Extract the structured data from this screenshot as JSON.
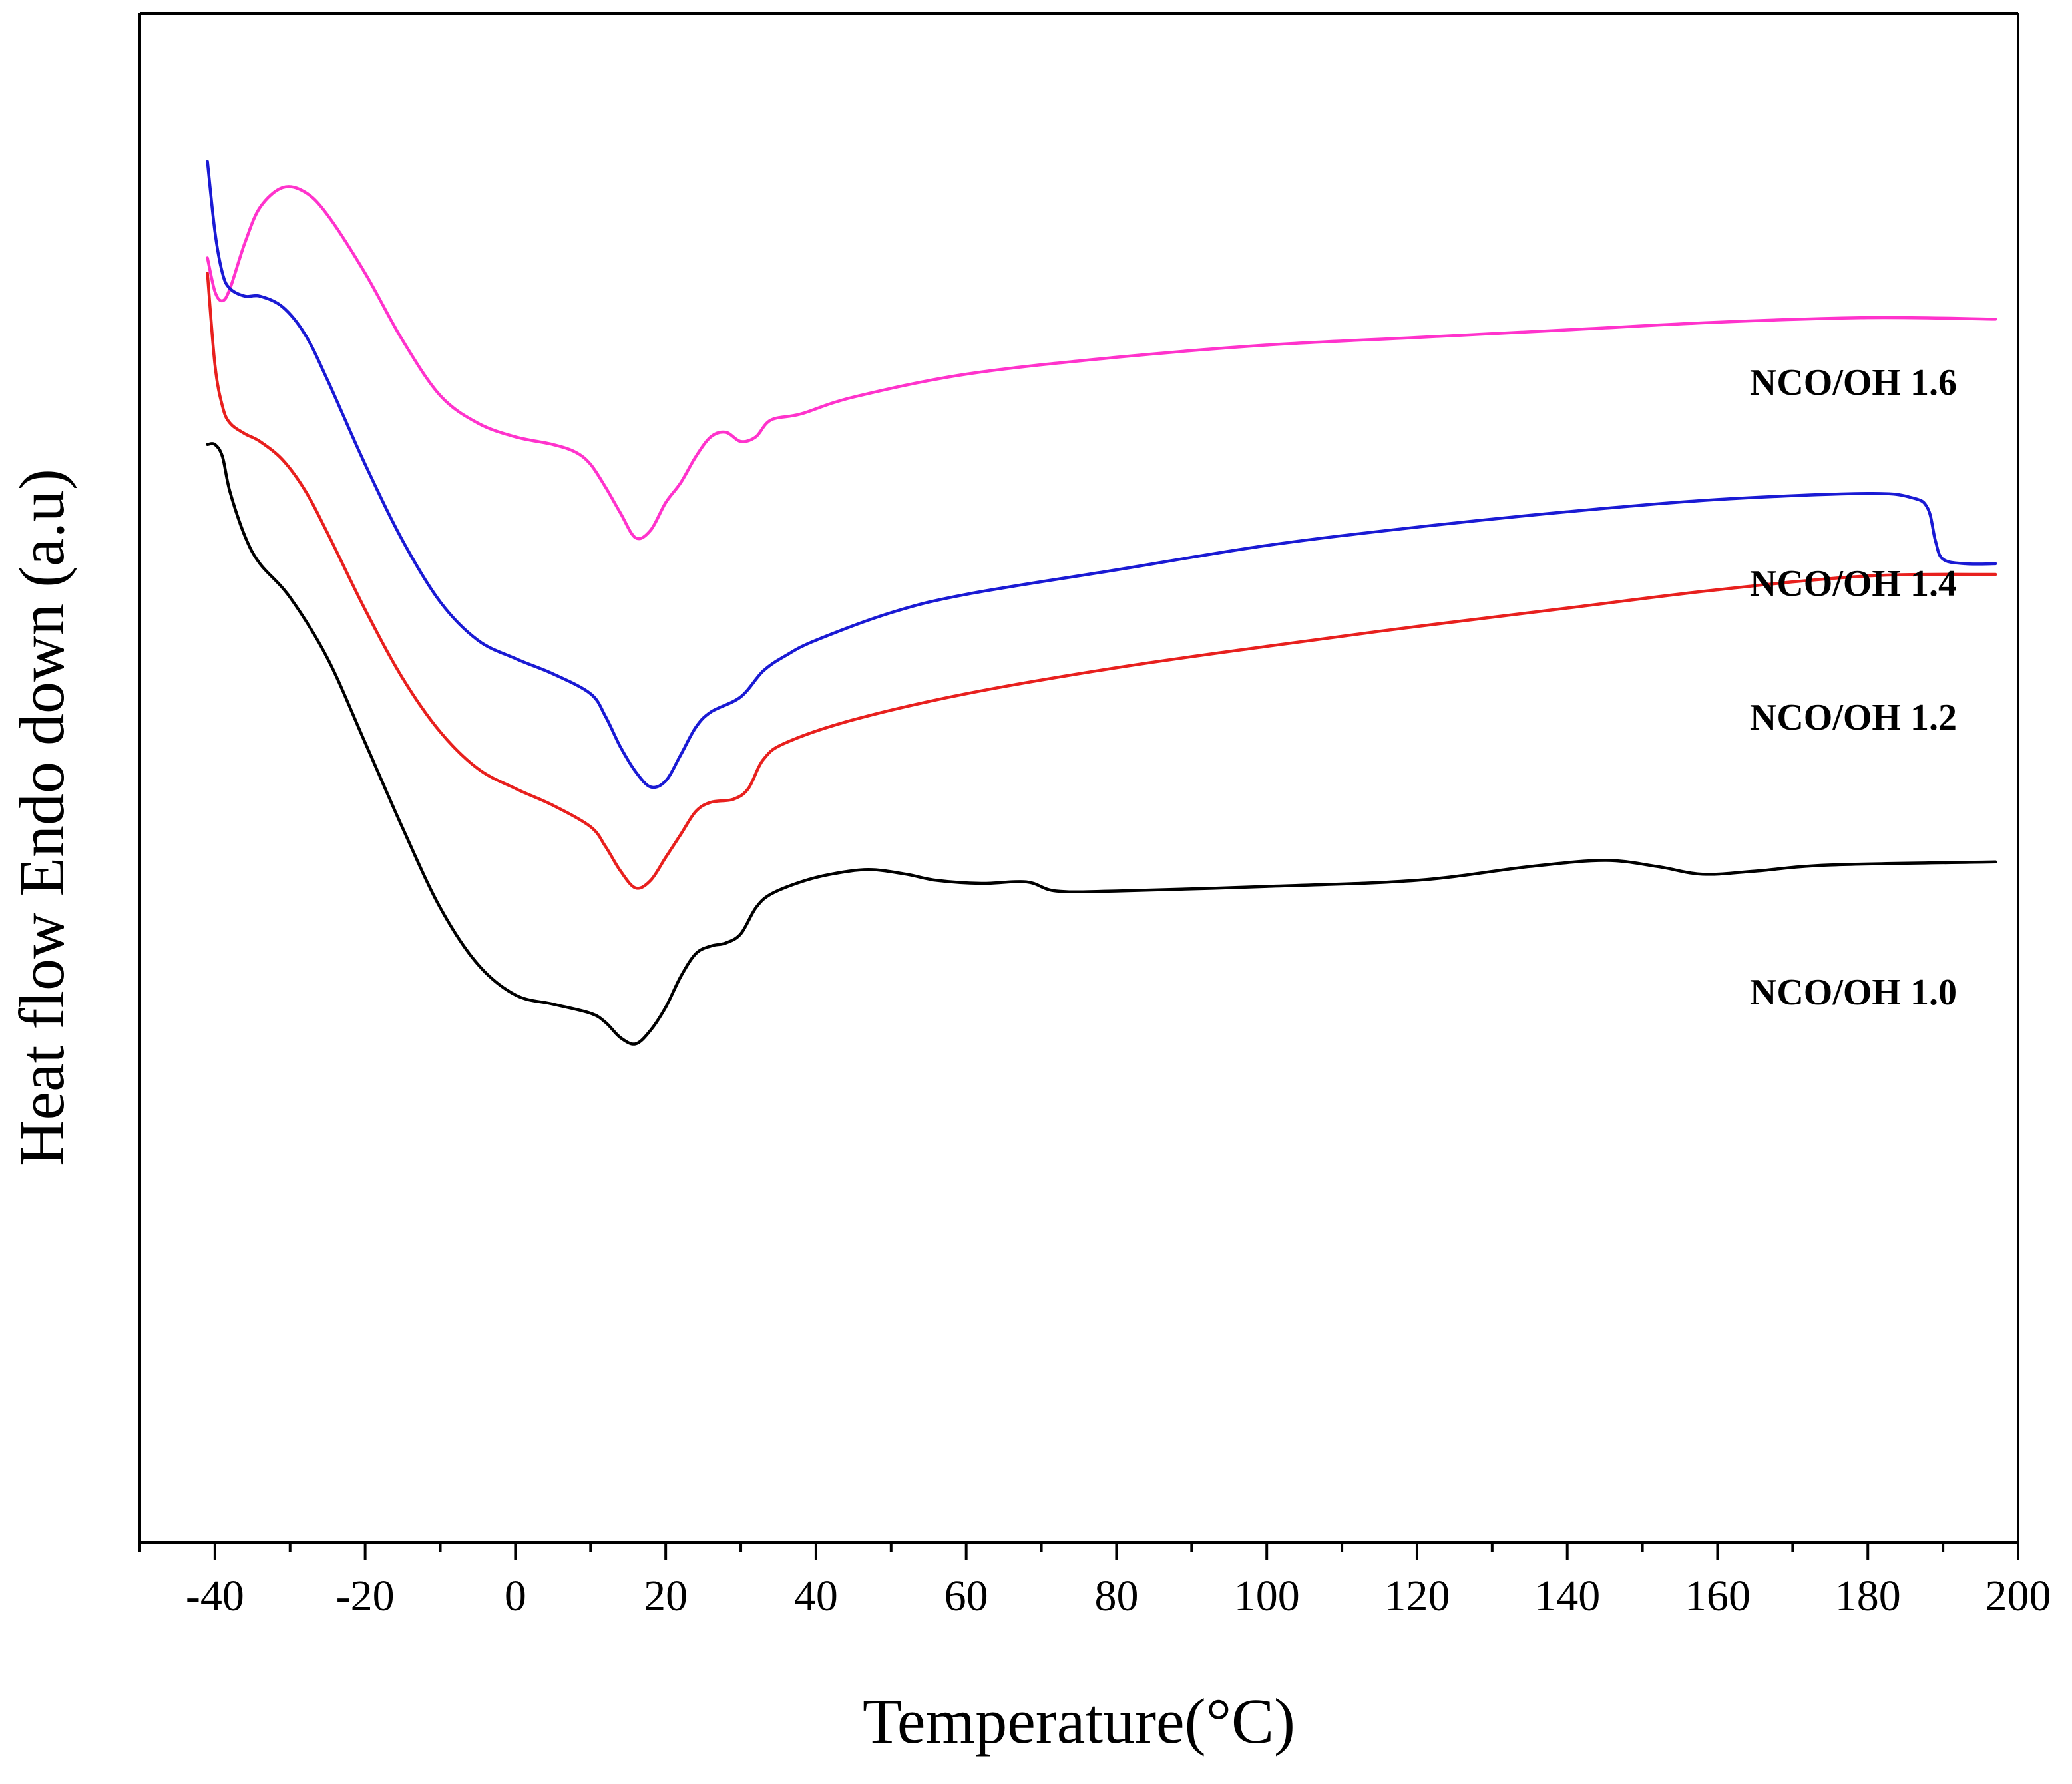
{
  "chart_data": {
    "type": "line",
    "title": "",
    "xlabel": "Temperature(°C)",
    "ylabel": "Heat flow Endo down (a.u)",
    "xlim": [
      -50,
      200
    ],
    "ylim": [
      0,
      100
    ],
    "xticks": [
      -40,
      -20,
      0,
      20,
      40,
      60,
      80,
      100,
      120,
      140,
      160,
      180,
      200
    ],
    "yticks_shown": false,
    "grid": false,
    "legend": "inline labels at right end of each curve",
    "series": [
      {
        "name": "NCO/OH 1.6",
        "color": "#ff33cc",
        "points": [
          [
            -41,
            84
          ],
          [
            -40,
            81.8
          ],
          [
            -39,
            81.2
          ],
          [
            -38,
            82
          ],
          [
            -36,
            85
          ],
          [
            -34,
            87.3
          ],
          [
            -31,
            88.6
          ],
          [
            -28,
            88.3
          ],
          [
            -25,
            86.8
          ],
          [
            -20,
            83
          ],
          [
            -15,
            78.6
          ],
          [
            -10,
            75
          ],
          [
            -5,
            73.2
          ],
          [
            0,
            72.3
          ],
          [
            5,
            71.8
          ],
          [
            8,
            71.3
          ],
          [
            10,
            70.5
          ],
          [
            12,
            69
          ],
          [
            14,
            67.3
          ],
          [
            16,
            65.7
          ],
          [
            18,
            66.2
          ],
          [
            20,
            68
          ],
          [
            22,
            69.3
          ],
          [
            24,
            71
          ],
          [
            26,
            72.3
          ],
          [
            28,
            72.6
          ],
          [
            30,
            72
          ],
          [
            32,
            72.3
          ],
          [
            34,
            73.4
          ],
          [
            38,
            73.8
          ],
          [
            45,
            74.9
          ],
          [
            60,
            76.4
          ],
          [
            80,
            77.5
          ],
          [
            100,
            78.3
          ],
          [
            120,
            78.8
          ],
          [
            140,
            79.3
          ],
          [
            160,
            79.8
          ],
          [
            180,
            80.1
          ],
          [
            197,
            80
          ]
        ]
      },
      {
        "name": "NCO/OH 1.4",
        "color": "#1a1ad4",
        "points": [
          [
            -41,
            90.3
          ],
          [
            -40,
            85.7
          ],
          [
            -39,
            83
          ],
          [
            -38,
            82
          ],
          [
            -36,
            81.5
          ],
          [
            -34,
            81.5
          ],
          [
            -31,
            80.8
          ],
          [
            -28,
            79
          ],
          [
            -25,
            76
          ],
          [
            -20,
            70.5
          ],
          [
            -15,
            65.5
          ],
          [
            -10,
            61.5
          ],
          [
            -5,
            59
          ],
          [
            0,
            57.8
          ],
          [
            5,
            56.8
          ],
          [
            10,
            55.5
          ],
          [
            12,
            54
          ],
          [
            14,
            52
          ],
          [
            16,
            50.4
          ],
          [
            18,
            49.4
          ],
          [
            20,
            49.8
          ],
          [
            22,
            51.5
          ],
          [
            24,
            53.3
          ],
          [
            26,
            54.3
          ],
          [
            30,
            55.3
          ],
          [
            33,
            57
          ],
          [
            36,
            58
          ],
          [
            40,
            59
          ],
          [
            50,
            60.8
          ],
          [
            60,
            62
          ],
          [
            80,
            63.6
          ],
          [
            100,
            65.2
          ],
          [
            120,
            66.4
          ],
          [
            140,
            67.4
          ],
          [
            160,
            68.2
          ],
          [
            180,
            68.6
          ],
          [
            186,
            68.3
          ],
          [
            188,
            67.6
          ],
          [
            189,
            65.5
          ],
          [
            190,
            64.3
          ],
          [
            193,
            64
          ],
          [
            197,
            64
          ]
        ]
      },
      {
        "name": "NCO/OH 1.2",
        "color": "#e8201e",
        "points": [
          [
            -41,
            83
          ],
          [
            -40,
            77
          ],
          [
            -39,
            74.3
          ],
          [
            -38,
            73.2
          ],
          [
            -36,
            72.5
          ],
          [
            -34,
            72
          ],
          [
            -31,
            70.8
          ],
          [
            -28,
            68.8
          ],
          [
            -25,
            66
          ],
          [
            -20,
            61
          ],
          [
            -15,
            56.5
          ],
          [
            -10,
            53
          ],
          [
            -5,
            50.6
          ],
          [
            0,
            49.3
          ],
          [
            5,
            48.2
          ],
          [
            10,
            46.8
          ],
          [
            12,
            45.5
          ],
          [
            14,
            43.9
          ],
          [
            16,
            42.8
          ],
          [
            18,
            43.3
          ],
          [
            20,
            44.8
          ],
          [
            22,
            46.3
          ],
          [
            24,
            47.8
          ],
          [
            26,
            48.4
          ],
          [
            29,
            48.6
          ],
          [
            31,
            49.3
          ],
          [
            33,
            51.2
          ],
          [
            36,
            52.3
          ],
          [
            45,
            53.8
          ],
          [
            60,
            55.5
          ],
          [
            80,
            57.2
          ],
          [
            100,
            58.6
          ],
          [
            120,
            59.9
          ],
          [
            140,
            61.1
          ],
          [
            160,
            62.3
          ],
          [
            180,
            63.2
          ],
          [
            197,
            63.3
          ]
        ]
      },
      {
        "name": "NCO/OH 1.0",
        "color": "#000000",
        "points": [
          [
            -41,
            71.8
          ],
          [
            -40,
            71.8
          ],
          [
            -39,
            71
          ],
          [
            -38,
            68.7
          ],
          [
            -36,
            65.8
          ],
          [
            -34,
            64
          ],
          [
            -30,
            61.8
          ],
          [
            -25,
            57.8
          ],
          [
            -20,
            52.3
          ],
          [
            -15,
            46.7
          ],
          [
            -10,
            41.5
          ],
          [
            -5,
            37.8
          ],
          [
            0,
            35.8
          ],
          [
            5,
            35.2
          ],
          [
            10,
            34.6
          ],
          [
            12,
            34
          ],
          [
            14,
            33
          ],
          [
            16,
            32.6
          ],
          [
            18,
            33.5
          ],
          [
            20,
            35
          ],
          [
            22,
            37
          ],
          [
            24,
            38.5
          ],
          [
            26,
            39
          ],
          [
            28,
            39.2
          ],
          [
            30,
            39.8
          ],
          [
            32,
            41.5
          ],
          [
            34,
            42.4
          ],
          [
            38,
            43.2
          ],
          [
            42,
            43.7
          ],
          [
            47,
            44
          ],
          [
            52,
            43.7
          ],
          [
            56,
            43.3
          ],
          [
            62,
            43.1
          ],
          [
            68,
            43.2
          ],
          [
            72,
            42.6
          ],
          [
            80,
            42.6
          ],
          [
            100,
            42.9
          ],
          [
            120,
            43.3
          ],
          [
            135,
            44.2
          ],
          [
            145,
            44.6
          ],
          [
            152,
            44.2
          ],
          [
            158,
            43.7
          ],
          [
            165,
            43.9
          ],
          [
            175,
            44.3
          ],
          [
            197,
            44.5
          ]
        ]
      }
    ]
  },
  "labels": {
    "series": [
      "NCO/OH 1.6",
      "NCO/OH 1.4",
      "NCO/OH 1.2",
      "NCO/OH 1.0"
    ],
    "xticks": [
      "-40",
      "-20",
      "0",
      "20",
      "40",
      "60",
      "80",
      "100",
      "120",
      "140",
      "160",
      "180",
      "200"
    ]
  }
}
